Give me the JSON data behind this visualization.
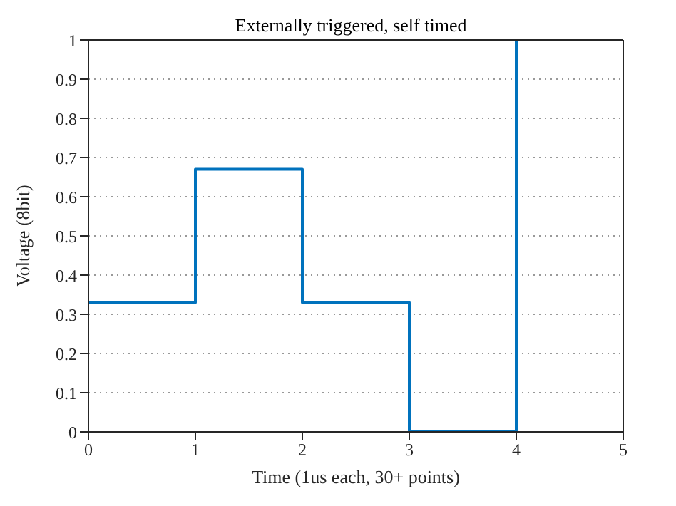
{
  "chart_data": {
    "type": "step",
    "title": "Externally triggered, self timed",
    "xlabel": "Time (1us each, 30+ points)",
    "ylabel": "Voltage (8bit)",
    "x": [
      0,
      1,
      2,
      3,
      4,
      5
    ],
    "series": [
      {
        "color": "#0072bd",
        "values": [
          0.33,
          0.67,
          0.33,
          0,
          1,
          1
        ]
      }
    ],
    "xlim": [
      0,
      5
    ],
    "xticks": [
      0,
      1,
      2,
      3,
      4,
      5
    ],
    "ylim": [
      0,
      1
    ],
    "yticks": [
      0,
      0.1,
      0.2,
      0.3,
      0.4,
      0.5,
      0.6,
      0.7,
      0.8,
      0.9,
      1
    ],
    "grid": "y",
    "legend": false,
    "marker": "none",
    "line_style": "solid"
  }
}
